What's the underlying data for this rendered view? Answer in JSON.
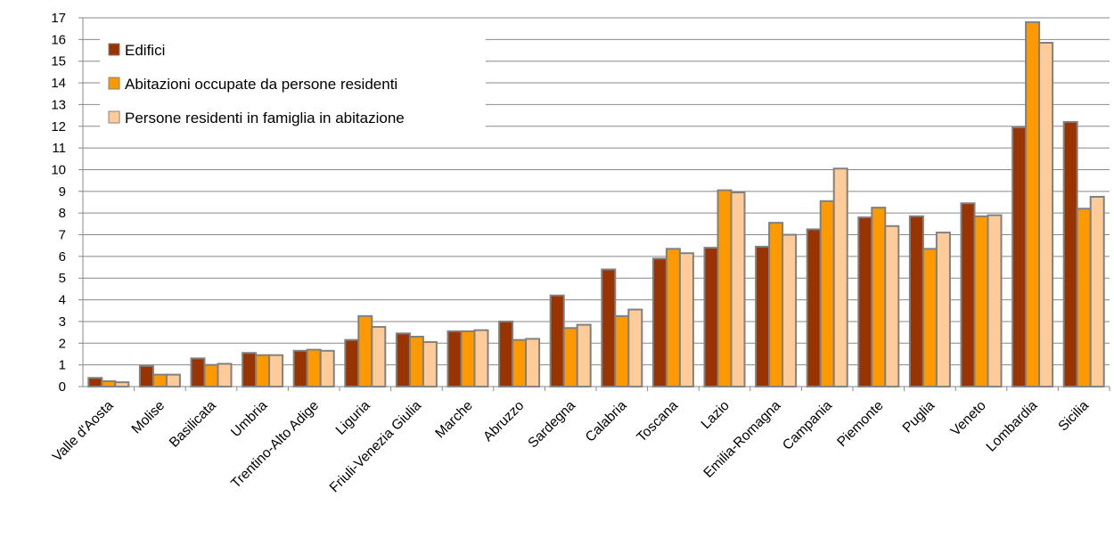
{
  "chart_data": {
    "type": "bar",
    "title": "",
    "xlabel": "",
    "ylabel": "",
    "ylim": [
      0,
      17
    ],
    "yticks": [
      0,
      1,
      2,
      3,
      4,
      5,
      6,
      7,
      8,
      9,
      10,
      11,
      12,
      13,
      14,
      15,
      16,
      17
    ],
    "grid": true,
    "legend": "top-left",
    "categories": [
      "Valle d'Aosta",
      "Molise",
      "Basilicata",
      "Umbria",
      "Trentino-Alto Adige",
      "Liguria",
      "Friuli-Venezia Giulia",
      "Marche",
      "Abruzzo",
      "Sardegna",
      "Calabria",
      "Toscana",
      "Lazio",
      "Emilia-Romagna",
      "Campania",
      "Piemonte",
      "Puglia",
      "Veneto",
      "Lombardia",
      "Sicilia"
    ],
    "series": [
      {
        "name": "Edifici",
        "color": "#993300",
        "values": [
          0.4,
          0.95,
          1.3,
          1.55,
          1.65,
          2.15,
          2.45,
          2.55,
          3.0,
          4.2,
          5.4,
          5.9,
          6.4,
          6.45,
          7.25,
          7.8,
          7.85,
          8.45,
          11.95,
          12.2
        ]
      },
      {
        "name": "Abitazioni occupate da persone residenti",
        "color": "#FF9900",
        "values": [
          0.25,
          0.55,
          1.0,
          1.45,
          1.7,
          3.25,
          2.3,
          2.55,
          2.15,
          2.7,
          3.25,
          6.35,
          9.05,
          7.55,
          8.55,
          8.25,
          6.35,
          7.85,
          16.8,
          8.2
        ]
      },
      {
        "name": "Persone residenti in famiglia in abitazione",
        "color": "#FFCC99",
        "values": [
          0.2,
          0.55,
          1.05,
          1.45,
          1.65,
          2.75,
          2.05,
          2.6,
          2.2,
          2.85,
          3.55,
          6.15,
          8.95,
          7.0,
          10.05,
          7.4,
          7.1,
          7.9,
          15.85,
          8.75
        ]
      }
    ],
    "border_color": "#808080",
    "grid_color": "#888888"
  }
}
